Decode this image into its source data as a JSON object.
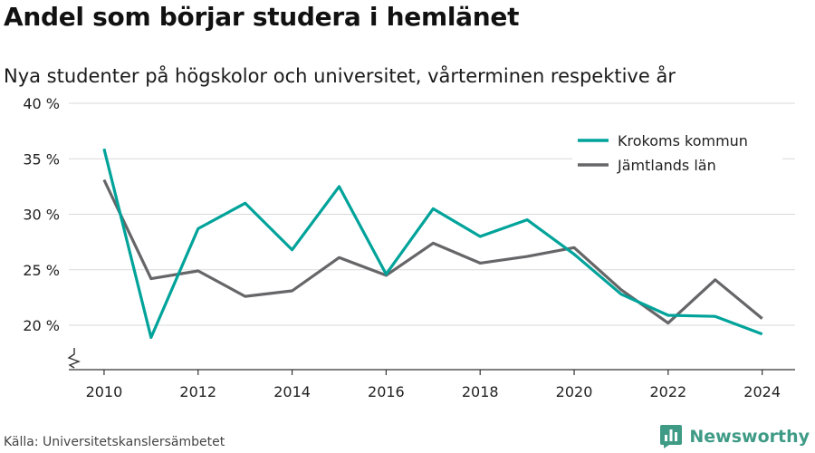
{
  "header": {
    "title": "Andel som börjar studera i hemlänet",
    "subtitle": "Nya studenter på högskolor och universitet, vårterminen respektive år"
  },
  "footer": {
    "source": "Källa: Universitetskanslersämbetet",
    "brand": "Newsworthy"
  },
  "colors": {
    "series_1": "#00a39a",
    "series_2": "#666669",
    "grid": "#d9d9d9",
    "brand": "#3f9b86"
  },
  "icons": {
    "brand_logo": "bar-chart-logo-icon",
    "axis_break": "zigzag-axis-break-icon"
  },
  "chart_data": {
    "type": "line",
    "x": [
      2010,
      2011,
      2012,
      2013,
      2014,
      2015,
      2016,
      2017,
      2018,
      2019,
      2020,
      2021,
      2022,
      2023,
      2024
    ],
    "series": [
      {
        "name": "Krokoms kommun",
        "values": [
          35.9,
          18.9,
          28.7,
          31.0,
          26.8,
          32.5,
          24.6,
          30.5,
          28.0,
          29.5,
          26.4,
          22.8,
          20.9,
          20.8,
          19.2
        ]
      },
      {
        "name": "Jämtlands län",
        "values": [
          33.1,
          24.2,
          24.9,
          22.6,
          23.1,
          26.1,
          24.5,
          27.4,
          25.6,
          26.2,
          27.0,
          23.2,
          20.2,
          24.1,
          20.6
        ]
      }
    ],
    "y_ticks": [
      20,
      25,
      30,
      35,
      40
    ],
    "y_tick_labels": [
      "20 %",
      "25 %",
      "30 %",
      "35 %",
      "40 %"
    ],
    "x_ticks": [
      2010,
      2012,
      2014,
      2016,
      2018,
      2020,
      2022,
      2024
    ],
    "x_tick_labels": [
      "2010",
      "2012",
      "2014",
      "2016",
      "2018",
      "2020",
      "2022",
      "2024"
    ],
    "ylim": [
      16,
      40
    ],
    "xlim": [
      2009.25,
      2024.7
    ],
    "grid": true,
    "legend_position": "top-right",
    "axis_break": true
  }
}
